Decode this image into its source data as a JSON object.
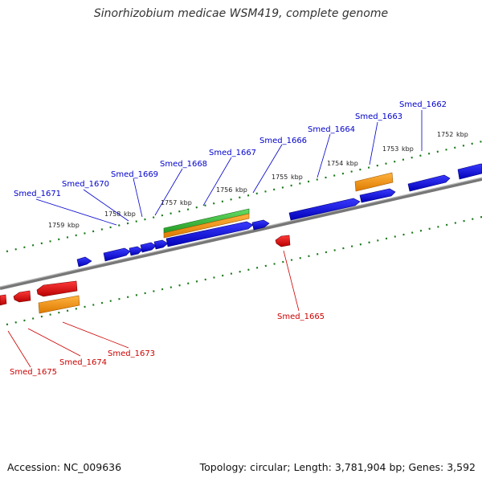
{
  "title": "Sinorhizobium medicae WSM419, complete genome",
  "footer": {
    "accession": "Accession: NC_009636",
    "topology": "Topology: circular; Length: 3,781,904 bp; Genes: 3,592"
  },
  "colors": {
    "forward_gene": "#0000ee",
    "reverse_gene": "#ee0000",
    "cds_feature": "#ff9900",
    "rna_feature": "#33bb33",
    "backbone": "#888888",
    "tick": "#1a7a1a",
    "forward_label": "#0000cc",
    "reverse_label": "#cc0000"
  },
  "scale_ticks_kbp": [
    1752,
    1753,
    1754,
    1755,
    1756,
    1757,
    1758,
    1759
  ],
  "scale_unit": "kbp",
  "forward_labels": [
    "Smed_1662",
    "Smed_1663",
    "Smed_1664",
    "Smed_1666",
    "Smed_1667",
    "Smed_1668",
    "Smed_1669",
    "Smed_1670",
    "Smed_1671"
  ],
  "reverse_labels": [
    "Smed_1665",
    "Smed_1673",
    "Smed_1674",
    "Smed_1675"
  ]
}
